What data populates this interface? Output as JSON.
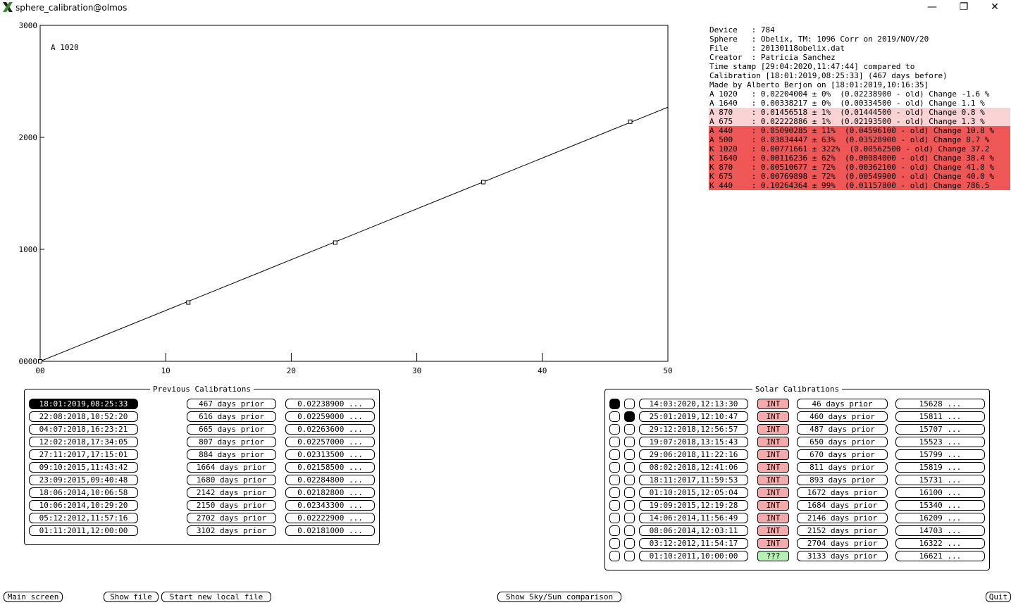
{
  "window": {
    "title": "sphere_calibration@olmos",
    "minimize_label": "—",
    "restore_label": "❐",
    "close_label": "✕"
  },
  "chart_data": {
    "type": "scatter",
    "annotation": "A 1020",
    "xlim": [
      0,
      50
    ],
    "ylim": [
      0,
      3000
    ],
    "x_ticks": [
      0,
      10,
      20,
      30,
      40,
      50
    ],
    "x_tick_labels": [
      "00",
      "10",
      "20",
      "30",
      "40",
      "50"
    ],
    "y_ticks": [
      0,
      1000,
      2000,
      3000
    ],
    "y_tick_labels": [
      "0000",
      "1000",
      "2000",
      "3000"
    ],
    "points": [
      {
        "x": 0,
        "y": 0
      },
      {
        "x": 11.8,
        "y": 525
      },
      {
        "x": 23.5,
        "y": 1060
      },
      {
        "x": 35.3,
        "y": 1600
      },
      {
        "x": 47,
        "y": 2140
      }
    ],
    "fit_line": {
      "x": [
        0,
        50
      ],
      "y": [
        0,
        2269
      ]
    }
  },
  "info": {
    "lines": [
      {
        "text": "Device   : 784",
        "level": "none"
      },
      {
        "text": "Sphere   : Obelix, TM: 1096 Corr on 2019/NOV/20",
        "level": "none"
      },
      {
        "text": "File     : 20130118obelix.dat",
        "level": "none"
      },
      {
        "text": "Creator  : Patricia Sanchez",
        "level": "none"
      },
      {
        "text": "Time stamp [29:04:2020,11:47:44] compared to",
        "level": "none"
      },
      {
        "text": "Calibration [18:01:2019,08:25:33] (467 days before)",
        "level": "none"
      },
      {
        "text": "Made by Alberto Berjon on [18:01:2019,10:16:35]",
        "level": "none"
      },
      {
        "text": "A 1020   : 0.02204004 ± 0%  (0.02238900 - old) Change -1.6 %",
        "level": "none"
      },
      {
        "text": "A 1640   : 0.00338217 ± 0%  (0.00334500 - old) Change 1.1 %",
        "level": "none"
      },
      {
        "text": "A 870    : 0.01456518 ± 1%  (0.01444500 - old) Change 0.8 %",
        "level": "light"
      },
      {
        "text": "A 675    : 0.02222886 ± 1%  (0.02193500 - old) Change 1.3 %",
        "level": "light"
      },
      {
        "text": "A 440    : 0.05090285 ± 11%  (0.04596100 - old) Change 10.8 %",
        "level": "strong"
      },
      {
        "text": "A 500    : 0.03834447 ± 63%  (0.03528900 - old) Change 8.7 %",
        "level": "strong"
      },
      {
        "text": "K 1020   : 0.00771661 ± 322%  (0.00562500 - old) Change 37.2",
        "level": "strong"
      },
      {
        "text": "K 1640   : 0.00116236 ± 62%  (0.00084000 - old) Change 38.4 %",
        "level": "strong"
      },
      {
        "text": "K 870    : 0.00510677 ± 72%  (0.00362100 - old) Change 41.0 %",
        "level": "strong"
      },
      {
        "text": "K 675    : 0.00769898 ± 72%  (0.00549900 - old) Change 40.0 %",
        "level": "strong"
      },
      {
        "text": "K 440    : 0.10264364 ± 99%  (0.01157800 - old) Change 786.5",
        "level": "strong"
      }
    ]
  },
  "previous_calibrations": {
    "title": "Previous Calibrations",
    "rows": [
      {
        "date": "18:01:2019,08:25:33",
        "prior": "467 days prior",
        "value": "0.02238900 ...",
        "selected": true
      },
      {
        "date": "22:08:2018,10:52:20",
        "prior": "616 days prior",
        "value": "0.02259000 ...",
        "selected": false
      },
      {
        "date": "04:07:2018,16:23:21",
        "prior": "665 days prior",
        "value": "0.02263600 ...",
        "selected": false
      },
      {
        "date": "12:02:2018,17:34:05",
        "prior": "807 days prior",
        "value": "0.02257000 ...",
        "selected": false
      },
      {
        "date": "27:11:2017,17:15:01",
        "prior": "884 days prior",
        "value": "0.02313500 ...",
        "selected": false
      },
      {
        "date": "09:10:2015,11:43:42",
        "prior": "1664 days prior",
        "value": "0.02158500 ...",
        "selected": false
      },
      {
        "date": "23:09:2015,09:40:48",
        "prior": "1680 days prior",
        "value": "0.02284800 ...",
        "selected": false
      },
      {
        "date": "18:06:2014,10:06:58",
        "prior": "2142 days prior",
        "value": "0.02182800 ...",
        "selected": false
      },
      {
        "date": "10:06:2014,10:29:20",
        "prior": "2150 days prior",
        "value": "0.02343300 ...",
        "selected": false
      },
      {
        "date": "05:12:2012,11:57:16",
        "prior": "2702 days prior",
        "value": "0.02222900 ...",
        "selected": false
      },
      {
        "date": "01:11:2011,12:00:00",
        "prior": "3102 days prior",
        "value": "0.02181000 ...",
        "selected": false
      }
    ]
  },
  "solar_calibrations": {
    "title": "Solar Calibrations",
    "rows": [
      {
        "radio1": true,
        "radio2": false,
        "date": "14:03:2020,12:13:30",
        "tag": "INT",
        "prior": "46 days prior",
        "value": "15628 ..."
      },
      {
        "radio1": false,
        "radio2": true,
        "date": "25:01:2019,12:10:47",
        "tag": "INT",
        "prior": "460 days prior",
        "value": "15811 ..."
      },
      {
        "radio1": false,
        "radio2": false,
        "date": "29:12:2018,12:56:57",
        "tag": "INT",
        "prior": "487 days prior",
        "value": "15707 ..."
      },
      {
        "radio1": false,
        "radio2": false,
        "date": "19:07:2018,13:15:43",
        "tag": "INT",
        "prior": "650 days prior",
        "value": "15523 ..."
      },
      {
        "radio1": false,
        "radio2": false,
        "date": "29:06:2018,11:22:16",
        "tag": "INT",
        "prior": "670 days prior",
        "value": "15799 ..."
      },
      {
        "radio1": false,
        "radio2": false,
        "date": "08:02:2018,12:41:06",
        "tag": "INT",
        "prior": "811 days prior",
        "value": "15819 ..."
      },
      {
        "radio1": false,
        "radio2": false,
        "date": "18:11:2017,11:59:53",
        "tag": "INT",
        "prior": "893 days prior",
        "value": "15731 ..."
      },
      {
        "radio1": false,
        "radio2": false,
        "date": "01:10:2015,12:05:04",
        "tag": "INT",
        "prior": "1672 days prior",
        "value": "16100 ..."
      },
      {
        "radio1": false,
        "radio2": false,
        "date": "19:09:2015,12:19:28",
        "tag": "INT",
        "prior": "1684 days prior",
        "value": "15340 ..."
      },
      {
        "radio1": false,
        "radio2": false,
        "date": "14:06:2014,11:56:49",
        "tag": "INT",
        "prior": "2146 days prior",
        "value": "16209 ..."
      },
      {
        "radio1": false,
        "radio2": false,
        "date": "08:06:2014,12:03:11",
        "tag": "INT",
        "prior": "2152 days prior",
        "value": "14703 ..."
      },
      {
        "radio1": false,
        "radio2": false,
        "date": "03:12:2012,11:54:17",
        "tag": "INT",
        "prior": "2704 days prior",
        "value": "16322 ..."
      },
      {
        "radio1": false,
        "radio2": false,
        "date": "01:10:2011,10:00:00",
        "tag": "???",
        "prior": "3133 days prior",
        "value": "16621 ..."
      }
    ]
  },
  "bottom_bar": {
    "main_screen": "Main screen",
    "show_file": "Show file",
    "start_new_local_file": "Start new local file",
    "show_sky_sun": "Show Sky/Sun comparison",
    "quit": "Quit"
  },
  "colors": {
    "warning_light": "#f9d3d3",
    "warning_strong": "#ef5656",
    "int_tag": "#f4aaaa",
    "unknown_tag": "#b5f0b5"
  }
}
